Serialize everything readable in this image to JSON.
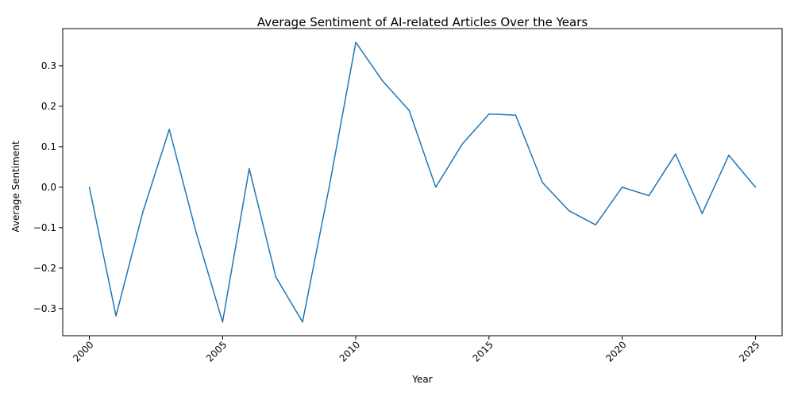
{
  "chart_data": {
    "type": "line",
    "title": "Average Sentiment of AI-related Articles Over the Years",
    "xlabel": "Year",
    "ylabel": "Average Sentiment",
    "xlim": [
      1999.0,
      2026.0
    ],
    "ylim": [
      -0.367,
      0.392
    ],
    "x_ticks": [
      2000,
      2005,
      2010,
      2015,
      2020,
      2025
    ],
    "y_ticks": [
      -0.3,
      -0.2,
      -0.1,
      0.0,
      0.1,
      0.2,
      0.3
    ],
    "x_tick_labels": [
      "2000",
      "2005",
      "2010",
      "2015",
      "2020",
      "2025"
    ],
    "y_tick_labels": [
      "−0.3",
      "−0.2",
      "−0.1",
      "0.0",
      "0.1",
      "0.2",
      "0.3"
    ],
    "grid": false,
    "color": "#1f77b4",
    "series": [
      {
        "x": [
          2000,
          2001,
          2002,
          2003,
          2004,
          2005,
          2006,
          2007,
          2008,
          2009,
          2010,
          2011,
          2012,
          2013,
          2014,
          2015,
          2016,
          2017,
          2018,
          2019,
          2020,
          2021,
          2022,
          2023,
          2024,
          2025
        ],
        "y": [
          0.0,
          -0.318,
          -0.063,
          0.143,
          -0.11,
          -0.333,
          0.046,
          -0.222,
          -0.333,
          0.0,
          0.358,
          0.263,
          0.19,
          0.0,
          0.107,
          0.181,
          0.178,
          0.012,
          -0.058,
          -0.093,
          0.0,
          -0.021,
          0.082,
          -0.065,
          0.079,
          0.0
        ]
      }
    ]
  }
}
